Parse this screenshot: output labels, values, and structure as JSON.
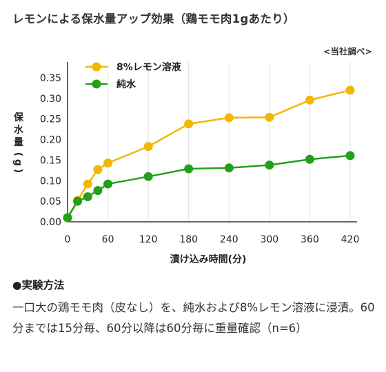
{
  "page": {
    "title": "レモンによる保水量アップ効果（鶏モモ肉1gあたり）",
    "source": "<当社調べ>",
    "method_heading": "●実験方法",
    "method_text": "一口大の鶏モモ肉（皮なし）を、純水および8%レモン溶液に浸漬。60分までは15分毎、60分以降は60分毎に重量確認（n=6）"
  },
  "colors": {
    "lemon": "#F2B705",
    "water": "#22A01B",
    "axis": "#333333",
    "grid": "#E0E0E0"
  },
  "chart_data": {
    "type": "line",
    "xlabel": "漬け込み時間(分)",
    "ylabel": "保水量(g)",
    "xlim": [
      0,
      420
    ],
    "ylim": [
      0,
      0.35
    ],
    "xticks": [
      0,
      60,
      120,
      180,
      240,
      300,
      360,
      420
    ],
    "yticks": [
      0.0,
      0.05,
      0.1,
      0.15,
      0.2,
      0.25,
      0.3,
      0.35
    ],
    "xtick_labels": [
      "0",
      "60",
      "120",
      "180",
      "240",
      "300",
      "360",
      "420"
    ],
    "ytick_labels": [
      "0.00",
      "0.05",
      "0.10",
      "0.15",
      "0.20",
      "0.25",
      "0.30",
      "0.35"
    ],
    "grid": "vertical",
    "legend": "top-left",
    "series": [
      {
        "name": "8%レモン溶液",
        "color": "#F2B705",
        "x": [
          0,
          15,
          30,
          45,
          60,
          120,
          180,
          240,
          300,
          360,
          420
        ],
        "y": [
          0.01,
          0.052,
          0.092,
          0.127,
          0.143,
          0.183,
          0.238,
          0.253,
          0.254,
          0.296,
          0.32
        ]
      },
      {
        "name": "純水",
        "color": "#22A01B",
        "x": [
          0,
          15,
          30,
          45,
          60,
          120,
          180,
          240,
          300,
          360,
          420
        ],
        "y": [
          0.01,
          0.05,
          0.061,
          0.076,
          0.092,
          0.11,
          0.129,
          0.131,
          0.138,
          0.152,
          0.161
        ]
      }
    ]
  }
}
